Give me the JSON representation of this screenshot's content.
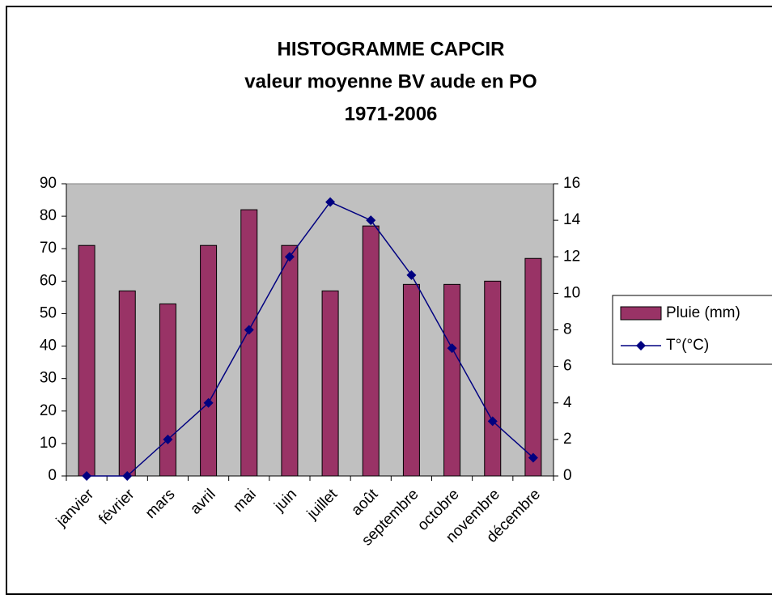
{
  "chart_data": {
    "type": "bar",
    "title": [
      "HISTOGRAMME CAPCIR",
      "valeur moyenne BV aude en PO",
      "1971-2006"
    ],
    "categories": [
      "janvier",
      "février",
      "mars",
      "avril",
      "mai",
      "juin",
      "juillet",
      "août",
      "septembre",
      "octobre",
      "novembre",
      "décembre"
    ],
    "series": [
      {
        "name": "Pluie (mm)",
        "type": "bar",
        "color": "#993366",
        "values": [
          71,
          57,
          53,
          71,
          82,
          71,
          57,
          77,
          59,
          59,
          60,
          67
        ]
      },
      {
        "name": "T°(°C)",
        "type": "line",
        "axis": "y2",
        "color": "#000080",
        "values": [
          0,
          0,
          2,
          4,
          8,
          12,
          15,
          14,
          11,
          7,
          3,
          1
        ]
      }
    ],
    "ylim": [
      0,
      90
    ],
    "yticks": [
      0,
      10,
      20,
      30,
      40,
      50,
      60,
      70,
      80,
      90
    ],
    "y2lim": [
      0,
      16
    ],
    "y2ticks": [
      0,
      2,
      4,
      6,
      8,
      10,
      12,
      14,
      16
    ],
    "legend": "right"
  }
}
